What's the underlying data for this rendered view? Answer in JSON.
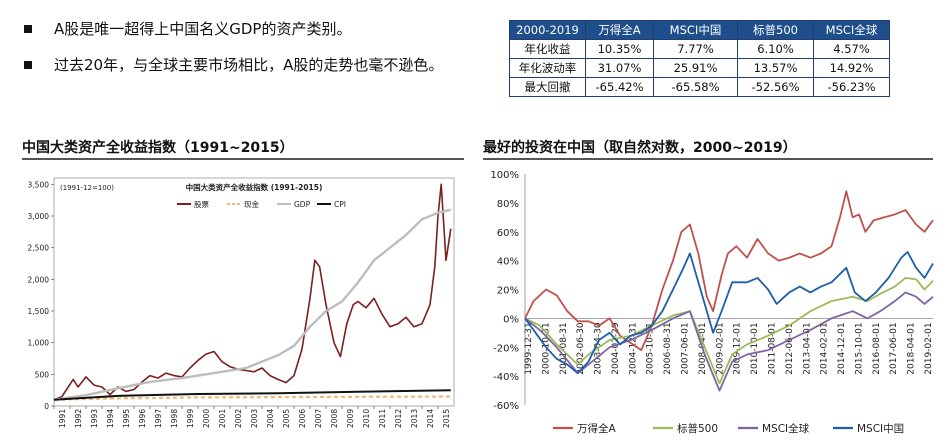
{
  "bullets": [
    "A股是唯一超得上中国名义GDP的资产类别。",
    "过去20年，与全球主要市场相比，A股的走势也毫不逊色。"
  ],
  "table": {
    "header": [
      "2000-2019",
      "万得全A",
      "MSCI中国",
      "标普500",
      "MSCI全球"
    ],
    "rows": [
      [
        "年化收益",
        "10.35%",
        "7.77%",
        "6.10%",
        "4.57%"
      ],
      [
        "年化波动率",
        "31.07%",
        "25.91%",
        "13.57%",
        "14.92%"
      ],
      [
        "最大回撤",
        "-65.42%",
        "-65.58%",
        "-52.56%",
        "-56.23%"
      ]
    ]
  },
  "chart_data": [
    {
      "type": "line",
      "panel_title": "中国大类资产全收益指数（1991~2015）",
      "title": "中国大类资产全收益指数 (1991-2015)",
      "note": "(1991-12=100)",
      "x": [
        "1991",
        "1992",
        "1993",
        "1994",
        "1995",
        "1996",
        "1997",
        "1998",
        "1999",
        "2000",
        "2001",
        "2002",
        "2003",
        "2004",
        "2005",
        "2006",
        "2007",
        "2008",
        "2009",
        "2010",
        "2011",
        "2012",
        "2013",
        "2014",
        "2015"
      ],
      "ylim": [
        0,
        3600
      ],
      "yticks": [
        "0",
        "500",
        "1,000",
        "1,500",
        "2,000",
        "2,500",
        "3,000",
        "3,500"
      ],
      "legend": [
        "股票",
        "现金",
        "GDP",
        "CPI"
      ],
      "legend_position": "top",
      "colors": {
        "股票": "#7b1f1f",
        "现金": "#f2b97a",
        "GDP": "#bdbdbd",
        "CPI": "#111111"
      },
      "series": [
        {
          "name": "股票",
          "points": [
            [
              1991.0,
              100
            ],
            [
              1991.5,
              150
            ],
            [
              1992.2,
              420
            ],
            [
              1992.5,
              300
            ],
            [
              1993.0,
              460
            ],
            [
              1993.5,
              330
            ],
            [
              1994.0,
              300
            ],
            [
              1994.5,
              180
            ],
            [
              1995.0,
              300
            ],
            [
              1995.5,
              230
            ],
            [
              1996.0,
              260
            ],
            [
              1996.5,
              380
            ],
            [
              1997.0,
              480
            ],
            [
              1997.5,
              440
            ],
            [
              1998.0,
              520
            ],
            [
              1998.5,
              480
            ],
            [
              1999.0,
              460
            ],
            [
              1999.5,
              600
            ],
            [
              2000.0,
              720
            ],
            [
              2000.5,
              820
            ],
            [
              2001.0,
              860
            ],
            [
              2001.5,
              700
            ],
            [
              2002.0,
              620
            ],
            [
              2002.5,
              580
            ],
            [
              2003.0,
              560
            ],
            [
              2003.5,
              540
            ],
            [
              2004.0,
              600
            ],
            [
              2004.5,
              480
            ],
            [
              2005.0,
              420
            ],
            [
              2005.5,
              370
            ],
            [
              2006.0,
              480
            ],
            [
              2006.5,
              900
            ],
            [
              2007.0,
              1700
            ],
            [
              2007.3,
              2300
            ],
            [
              2007.6,
              2200
            ],
            [
              2008.0,
              1600
            ],
            [
              2008.5,
              1000
            ],
            [
              2008.9,
              780
            ],
            [
              2009.3,
              1300
            ],
            [
              2009.7,
              1600
            ],
            [
              2010.0,
              1650
            ],
            [
              2010.5,
              1550
            ],
            [
              2011.0,
              1700
            ],
            [
              2011.5,
              1450
            ],
            [
              2012.0,
              1250
            ],
            [
              2012.5,
              1300
            ],
            [
              2013.0,
              1400
            ],
            [
              2013.5,
              1250
            ],
            [
              2014.0,
              1300
            ],
            [
              2014.5,
              1600
            ],
            [
              2014.8,
              2200
            ],
            [
              2015.0,
              3000
            ],
            [
              2015.2,
              3500
            ],
            [
              2015.5,
              2300
            ],
            [
              2015.8,
              2800
            ]
          ]
        },
        {
          "name": "现金",
          "points": [
            [
              1991.0,
              100
            ],
            [
              1995.0,
              120
            ],
            [
              2000.0,
              135
            ],
            [
              2005.0,
              140
            ],
            [
              2010.0,
              145
            ],
            [
              2015.8,
              150
            ]
          ]
        },
        {
          "name": "GDP",
          "points": [
            [
              1991.0,
              100
            ],
            [
              1993.0,
              170
            ],
            [
              1995.0,
              280
            ],
            [
              1997.0,
              380
            ],
            [
              1999.0,
              440
            ],
            [
              2001.0,
              520
            ],
            [
              2003.0,
              600
            ],
            [
              2005.0,
              800
            ],
            [
              2006.0,
              950
            ],
            [
              2007.0,
              1250
            ],
            [
              2008.0,
              1500
            ],
            [
              2009.0,
              1650
            ],
            [
              2010.0,
              1950
            ],
            [
              2011.0,
              2300
            ],
            [
              2012.0,
              2500
            ],
            [
              2013.0,
              2700
            ],
            [
              2014.0,
              2950
            ],
            [
              2015.0,
              3050
            ],
            [
              2015.8,
              3100
            ]
          ]
        },
        {
          "name": "CPI",
          "points": [
            [
              1991.0,
              100
            ],
            [
              1995.0,
              160
            ],
            [
              2000.0,
              190
            ],
            [
              2005.0,
              200
            ],
            [
              2010.0,
              225
            ],
            [
              2015.8,
              250
            ]
          ]
        }
      ]
    },
    {
      "type": "line",
      "panel_title": "最好的投资在中国（取自然对数，2000~2019）",
      "x_labels": [
        "1999-12-31",
        "2000-10-31",
        "2001-08-31",
        "2002-06-30",
        "2003-04-30",
        "2004-02-29",
        "2004-12-31",
        "2005-10-31",
        "2006-08-31",
        "2007-06-01",
        "2008-04-01",
        "2009-02-01",
        "2009-12-01",
        "2010-10-01",
        "2011-08-01",
        "2012-06-01",
        "2013-04-01",
        "2014-02-01",
        "2014-12-01",
        "2015-10-01",
        "2016-08-01",
        "2017-06-01",
        "2018-04-01",
        "2019-02-01"
      ],
      "x_range": [
        2000.0,
        2019.3
      ],
      "ylim": [
        -60,
        100
      ],
      "yticks": [
        "-60%",
        "-40%",
        "-20%",
        "0%",
        "20%",
        "40%",
        "60%",
        "80%",
        "100%"
      ],
      "legend": [
        "万得全A",
        "标普500",
        "MSCI全球",
        "MSCI中国"
      ],
      "legend_position": "bottom",
      "colors": {
        "万得全A": "#c0504d",
        "标普500": "#9bbb59",
        "MSCI全球": "#8064a2",
        "MSCI中国": "#1f5ea8"
      },
      "series": [
        {
          "name": "万得全A",
          "points": [
            [
              2000.0,
              0
            ],
            [
              2000.4,
              12
            ],
            [
              2001.0,
              20
            ],
            [
              2001.5,
              16
            ],
            [
              2002.0,
              5
            ],
            [
              2002.5,
              -2
            ],
            [
              2003.0,
              -2
            ],
            [
              2003.5,
              -5
            ],
            [
              2004.0,
              0
            ],
            [
              2004.5,
              -12
            ],
            [
              2005.0,
              -17
            ],
            [
              2005.5,
              -22
            ],
            [
              2006.0,
              -5
            ],
            [
              2006.5,
              20
            ],
            [
              2007.0,
              40
            ],
            [
              2007.4,
              60
            ],
            [
              2007.8,
              65
            ],
            [
              2008.2,
              45
            ],
            [
              2008.6,
              15
            ],
            [
              2008.9,
              5
            ],
            [
              2009.3,
              30
            ],
            [
              2009.6,
              45
            ],
            [
              2010.0,
              50
            ],
            [
              2010.5,
              42
            ],
            [
              2011.0,
              55
            ],
            [
              2011.5,
              45
            ],
            [
              2012.0,
              40
            ],
            [
              2012.5,
              42
            ],
            [
              2013.0,
              45
            ],
            [
              2013.5,
              42
            ],
            [
              2014.0,
              45
            ],
            [
              2014.5,
              50
            ],
            [
              2014.9,
              70
            ],
            [
              2015.2,
              88
            ],
            [
              2015.5,
              70
            ],
            [
              2015.8,
              72
            ],
            [
              2016.1,
              60
            ],
            [
              2016.5,
              68
            ],
            [
              2017.0,
              70
            ],
            [
              2017.5,
              72
            ],
            [
              2018.0,
              75
            ],
            [
              2018.5,
              65
            ],
            [
              2018.9,
              60
            ],
            [
              2019.3,
              68
            ]
          ]
        },
        {
          "name": "标普500",
          "points": [
            [
              2000.0,
              0
            ],
            [
              2000.7,
              -5
            ],
            [
              2001.5,
              -18
            ],
            [
              2002.5,
              -32
            ],
            [
              2003.0,
              -25
            ],
            [
              2004.0,
              -15
            ],
            [
              2005.0,
              -12
            ],
            [
              2006.0,
              -5
            ],
            [
              2007.0,
              2
            ],
            [
              2007.8,
              5
            ],
            [
              2008.5,
              -20
            ],
            [
              2009.2,
              -45
            ],
            [
              2009.8,
              -25
            ],
            [
              2010.5,
              -18
            ],
            [
              2011.5,
              -12
            ],
            [
              2012.5,
              -5
            ],
            [
              2013.5,
              5
            ],
            [
              2014.5,
              12
            ],
            [
              2015.5,
              15
            ],
            [
              2016.2,
              12
            ],
            [
              2016.8,
              17
            ],
            [
              2017.5,
              22
            ],
            [
              2018.0,
              28
            ],
            [
              2018.5,
              27
            ],
            [
              2018.9,
              20
            ],
            [
              2019.3,
              26
            ]
          ]
        },
        {
          "name": "MSCI全球",
          "points": [
            [
              2000.0,
              0
            ],
            [
              2000.7,
              -8
            ],
            [
              2001.5,
              -20
            ],
            [
              2002.5,
              -38
            ],
            [
              2003.0,
              -32
            ],
            [
              2004.0,
              -20
            ],
            [
              2005.0,
              -15
            ],
            [
              2006.0,
              -8
            ],
            [
              2007.0,
              0
            ],
            [
              2007.8,
              5
            ],
            [
              2008.5,
              -25
            ],
            [
              2009.2,
              -50
            ],
            [
              2009.8,
              -30
            ],
            [
              2010.5,
              -25
            ],
            [
              2011.5,
              -22
            ],
            [
              2012.5,
              -15
            ],
            [
              2013.5,
              -8
            ],
            [
              2014.5,
              0
            ],
            [
              2015.5,
              5
            ],
            [
              2016.2,
              0
            ],
            [
              2016.8,
              5
            ],
            [
              2017.5,
              12
            ],
            [
              2018.0,
              18
            ],
            [
              2018.5,
              15
            ],
            [
              2018.9,
              10
            ],
            [
              2019.3,
              15
            ]
          ]
        },
        {
          "name": "MSCI中国",
          "points": [
            [
              2000.0,
              0
            ],
            [
              2000.5,
              -10
            ],
            [
              2001.0,
              -20
            ],
            [
              2001.5,
              -28
            ],
            [
              2002.0,
              -32
            ],
            [
              2002.5,
              -38
            ],
            [
              2003.0,
              -30
            ],
            [
              2003.5,
              -15
            ],
            [
              2004.0,
              -10
            ],
            [
              2004.5,
              -18
            ],
            [
              2005.0,
              -12
            ],
            [
              2005.5,
              -10
            ],
            [
              2006.0,
              -5
            ],
            [
              2006.5,
              5
            ],
            [
              2007.0,
              20
            ],
            [
              2007.5,
              35
            ],
            [
              2007.8,
              45
            ],
            [
              2008.3,
              20
            ],
            [
              2008.9,
              -10
            ],
            [
              2009.3,
              5
            ],
            [
              2009.8,
              25
            ],
            [
              2010.5,
              25
            ],
            [
              2011.0,
              28
            ],
            [
              2011.5,
              20
            ],
            [
              2011.9,
              10
            ],
            [
              2012.5,
              18
            ],
            [
              2013.0,
              22
            ],
            [
              2013.5,
              18
            ],
            [
              2014.0,
              22
            ],
            [
              2014.5,
              25
            ],
            [
              2015.2,
              35
            ],
            [
              2015.6,
              18
            ],
            [
              2016.1,
              12
            ],
            [
              2016.6,
              18
            ],
            [
              2017.2,
              28
            ],
            [
              2017.8,
              42
            ],
            [
              2018.1,
              46
            ],
            [
              2018.5,
              35
            ],
            [
              2018.9,
              28
            ],
            [
              2019.3,
              38
            ]
          ]
        }
      ]
    }
  ]
}
